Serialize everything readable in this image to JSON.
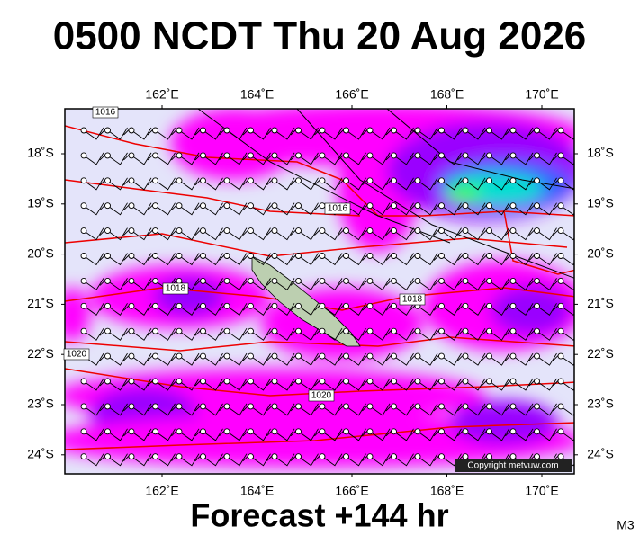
{
  "header": {
    "title": "0500 NCDT Thu 20 Aug 2026"
  },
  "footer": {
    "forecast": "Forecast +144 hr",
    "model": "M3"
  },
  "map": {
    "copyright": "Copyright metvuw.com",
    "longitude_labels": [
      "162˚E",
      "164˚E",
      "166˚E",
      "168˚E",
      "170˚E"
    ],
    "latitude_labels": [
      "18˚S",
      "19˚S",
      "20˚S",
      "21˚S",
      "22˚S",
      "23˚S",
      "24˚S"
    ],
    "isobar_labels": [
      "1016",
      "1016",
      "1018",
      "1018",
      "1020",
      "1020"
    ]
  }
}
